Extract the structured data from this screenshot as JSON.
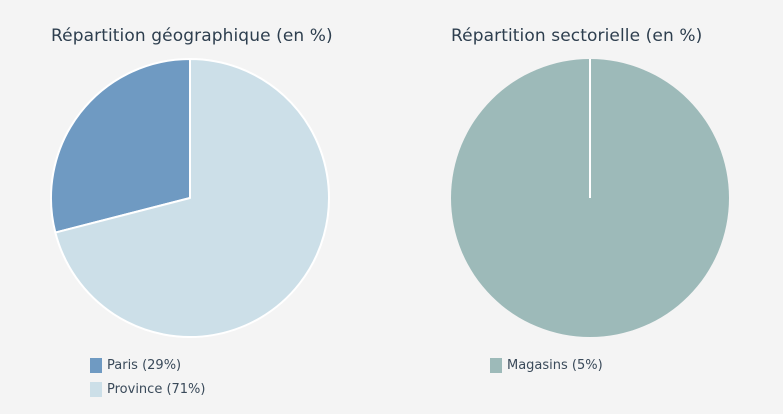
{
  "chart_data": [
    {
      "type": "pie",
      "title": "Répartition géographique (en %)",
      "slices": [
        {
          "label": "Paris",
          "value": 29,
          "legend": "Paris (29%)",
          "color": "#6f9ac2"
        },
        {
          "label": "Province",
          "value": 71,
          "legend": "Province (71%)",
          "color": "#ccdfe8"
        }
      ],
      "start_angle_deg": 0,
      "direction": "counterclockwise",
      "slice_separator_color": "#ffffff",
      "legend_position": "bottom"
    },
    {
      "type": "pie",
      "title": "Répartition sectorielle (en %)",
      "slices": [
        {
          "label": "Magasins",
          "value": 5,
          "legend": "Magasins (5%)",
          "color": "#9dbab9"
        }
      ],
      "start_angle_deg": 0,
      "slice_separator_color": "#ffffff",
      "legend_position": "bottom"
    }
  ],
  "colors": {
    "background": "#f4f4f4",
    "title_text": "#2d3e4e",
    "legend_text": "#3a4a5a"
  }
}
